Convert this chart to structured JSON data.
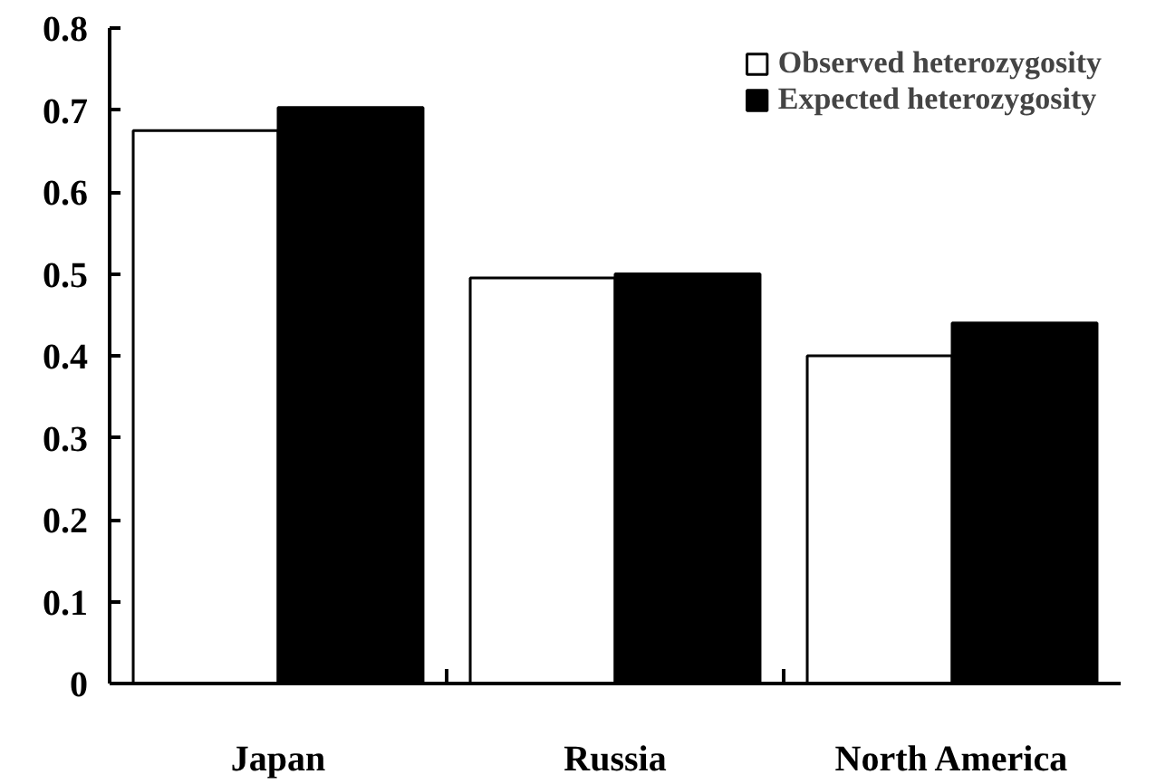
{
  "chart_data": {
    "type": "bar",
    "categories": [
      "Japan",
      "Russia",
      "North America"
    ],
    "series": [
      {
        "name": "Observed heterozygosity",
        "color": "#ffffff",
        "values": [
          0.675,
          0.495,
          0.4
        ]
      },
      {
        "name": "Expected heterozygosity",
        "color": "#000000",
        "values": [
          0.703,
          0.5,
          0.44
        ]
      }
    ],
    "ylim": [
      0,
      0.8
    ],
    "yticks": [
      0,
      0.1,
      0.2,
      0.3,
      0.4,
      0.5,
      0.6,
      0.7,
      0.8
    ],
    "grid": false,
    "legend": "top right"
  }
}
